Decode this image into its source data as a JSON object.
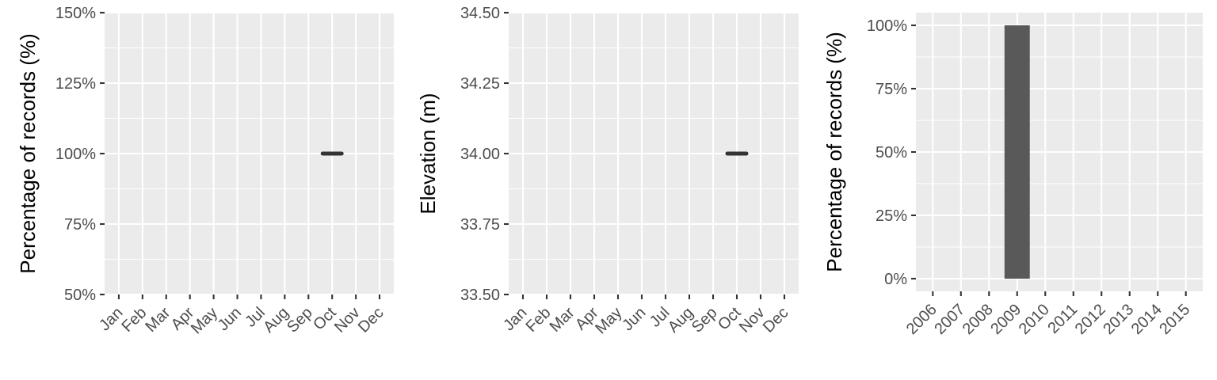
{
  "chart_data": [
    {
      "type": "line",
      "ylabel": "Percentage of records (%)",
      "xlabel": "",
      "categories": [
        "Jan",
        "Feb",
        "Mar",
        "Apr",
        "May",
        "Jun",
        "Jul",
        "Aug",
        "Sep",
        "Oct",
        "Nov",
        "Dec"
      ],
      "ylim": [
        50,
        150
      ],
      "yticks": [
        50,
        75,
        100,
        125,
        150
      ],
      "ytick_labels": [
        "50%",
        "75%",
        "100%",
        "125%",
        "150%"
      ],
      "grid": true,
      "series": [
        {
          "category": "Oct",
          "value": 100
        }
      ]
    },
    {
      "type": "line",
      "ylabel": "Elevation (m)",
      "xlabel": "",
      "categories": [
        "Jan",
        "Feb",
        "Mar",
        "Apr",
        "May",
        "Jun",
        "Jul",
        "Aug",
        "Sep",
        "Oct",
        "Nov",
        "Dec"
      ],
      "ylim": [
        33.5,
        34.5
      ],
      "yticks": [
        33.5,
        33.75,
        34.0,
        34.25,
        34.5
      ],
      "ytick_labels": [
        "33.50",
        "33.75",
        "34.00",
        "34.25",
        "34.50"
      ],
      "grid": true,
      "series": [
        {
          "category": "Oct",
          "value": 34.0
        }
      ]
    },
    {
      "type": "bar",
      "ylabel": "Percentage of records (%)",
      "xlabel": "",
      "categories": [
        "2006",
        "2007",
        "2008",
        "2009",
        "2010",
        "2011",
        "2012",
        "2013",
        "2014",
        "2015"
      ],
      "values": [
        0,
        0,
        0,
        100,
        0,
        0,
        0,
        0,
        0,
        0
      ],
      "ylim": [
        -5,
        105
      ],
      "yticks": [
        0,
        25,
        50,
        75,
        100
      ],
      "ytick_labels": [
        "0%",
        "25%",
        "50%",
        "75%",
        "100%"
      ],
      "bar_color": "#595959",
      "grid": true
    }
  ]
}
